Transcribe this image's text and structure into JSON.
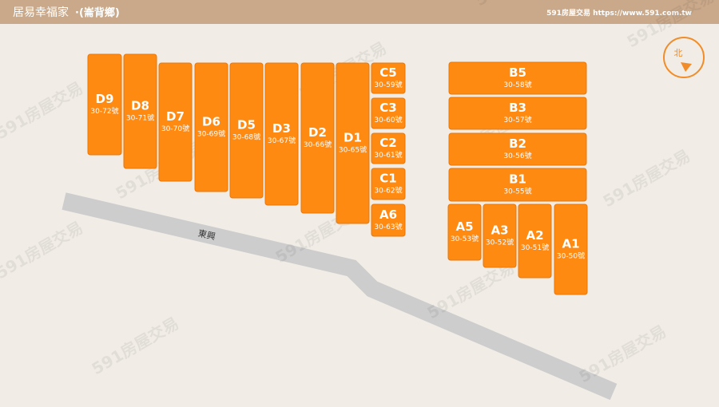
{
  "header": {
    "title": "居易幸福家",
    "location": "·(崙背鄉)",
    "brand": "591房屋交易 https://www.591.com.tw"
  },
  "compass": {
    "label": "北"
  },
  "road": {
    "label": "東興"
  },
  "watermark": "591房屋交易",
  "lots": [
    {
      "name": "D9",
      "number": "30-72號"
    },
    {
      "name": "D8",
      "number": "30-71號"
    },
    {
      "name": "D7",
      "number": "30-70號"
    },
    {
      "name": "D6",
      "number": "30-69號"
    },
    {
      "name": "D5",
      "number": "30-68號"
    },
    {
      "name": "D3",
      "number": "30-67號"
    },
    {
      "name": "D2",
      "number": "30-66號"
    },
    {
      "name": "D1",
      "number": "30-65號"
    },
    {
      "name": "C5",
      "number": "30-59號"
    },
    {
      "name": "C3",
      "number": "30-60號"
    },
    {
      "name": "C2",
      "number": "30-61號"
    },
    {
      "name": "C1",
      "number": "30-62號"
    },
    {
      "name": "A6",
      "number": "30-63號"
    },
    {
      "name": "B5",
      "number": "30-58號"
    },
    {
      "name": "B3",
      "number": "30-57號"
    },
    {
      "name": "B2",
      "number": "30-56號"
    },
    {
      "name": "B1",
      "number": "30-55號"
    },
    {
      "name": "A5",
      "number": "30-53號"
    },
    {
      "name": "A3",
      "number": "30-52號"
    },
    {
      "name": "A2",
      "number": "30-51號"
    },
    {
      "name": "A1",
      "number": "30-50號"
    }
  ]
}
